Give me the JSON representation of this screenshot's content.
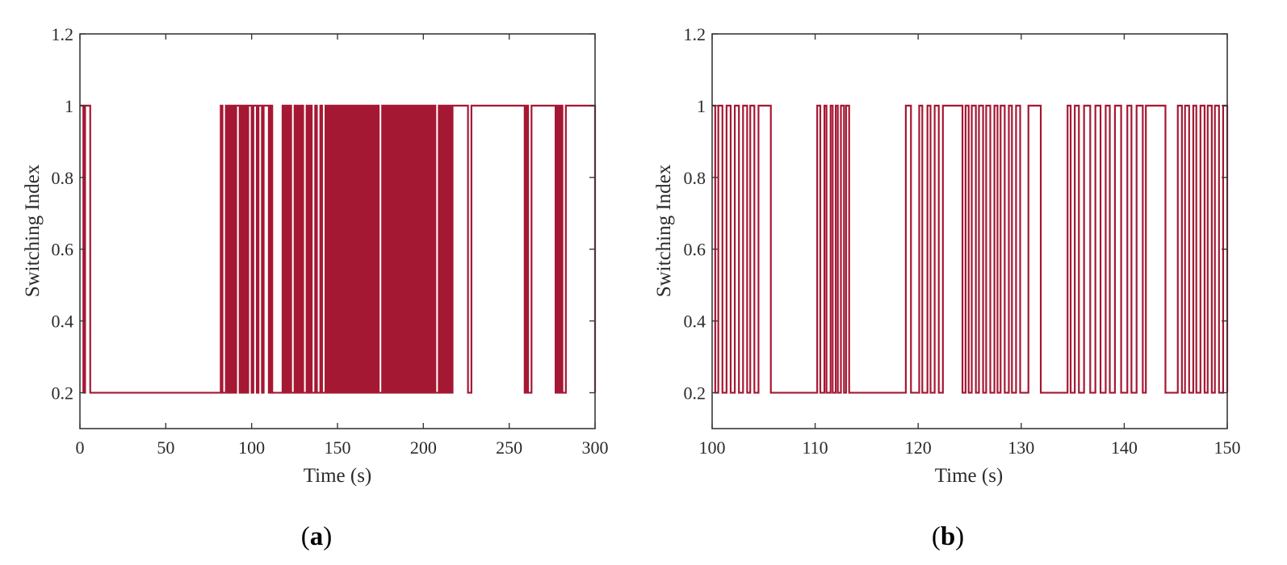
{
  "colors": {
    "series": "#A51833",
    "axes": "#3a3a3a",
    "background": "#ffffff"
  },
  "chart_data": [
    {
      "type": "line",
      "panel_label": "a",
      "xlabel": "Time (s)",
      "ylabel": "Switching Index",
      "xlim": [
        0,
        300
      ],
      "ylim": [
        0.1,
        1.2
      ],
      "xticks": [
        0,
        50,
        100,
        150,
        200,
        250,
        300
      ],
      "xtick_labels": [
        "0",
        "50",
        "100",
        "150",
        "200",
        "250",
        "300"
      ],
      "yticks": [
        0.2,
        0.4,
        0.6,
        0.8,
        1.0,
        1.2
      ],
      "ytick_labels": [
        "0.2",
        "0.4",
        "0.6",
        "0.8",
        "1",
        "1.2"
      ],
      "grid": false,
      "step": true,
      "series": [
        {
          "values_at_levels": [
            0.2,
            1.0
          ],
          "x": [
            0,
            2,
            3,
            5,
            6,
            82,
            83,
            85,
            86,
            87,
            88,
            89,
            90,
            91,
            93,
            94,
            95,
            96,
            97,
            98,
            100,
            101,
            103,
            104,
            106,
            107,
            110,
            111,
            112,
            113,
            118,
            119,
            120,
            121,
            122,
            123,
            125,
            126,
            127,
            128,
            129,
            130,
            132,
            133,
            134,
            135,
            137,
            138,
            140,
            141,
            143,
            144,
            145,
            146,
            147,
            148,
            149,
            150,
            151,
            152,
            153,
            154,
            155,
            156,
            157,
            158,
            159,
            160,
            161,
            162,
            163,
            164,
            165,
            166,
            167,
            168,
            169,
            170,
            171,
            172,
            173,
            174,
            176,
            177,
            178,
            179,
            180,
            181,
            182,
            183,
            184,
            185,
            186,
            187,
            188,
            189,
            190,
            191,
            192,
            193,
            194,
            195,
            196,
            197,
            198,
            199,
            200,
            201,
            202,
            203,
            204,
            205,
            206,
            207,
            209,
            210,
            211,
            212,
            213,
            214,
            215,
            216,
            217,
            226,
            228,
            259,
            260,
            261,
            263,
            277,
            278,
            279,
            280,
            281,
            283,
            300
          ],
          "y": [
            1,
            0.2,
            1,
            1,
            0.2,
            1,
            0.2,
            1,
            0.2,
            1,
            0.2,
            1,
            0.2,
            1,
            0.2,
            1,
            0.2,
            1,
            0.2,
            1,
            0.2,
            1,
            0.2,
            1,
            0.2,
            1,
            0.2,
            1,
            0.2,
            0.2,
            1,
            0.2,
            1,
            0.2,
            1,
            0.2,
            1,
            0.2,
            1,
            0.2,
            1,
            0.2,
            1,
            0.2,
            1,
            0.2,
            1,
            0.2,
            1,
            0.2,
            1,
            0.2,
            1,
            0.2,
            1,
            0.2,
            1,
            0.2,
            1,
            0.2,
            1,
            0.2,
            1,
            0.2,
            1,
            0.2,
            1,
            0.2,
            1,
            0.2,
            1,
            0.2,
            1,
            0.2,
            1,
            0.2,
            1,
            0.2,
            1,
            0.2,
            1,
            0.2,
            1,
            0.2,
            1,
            0.2,
            1,
            0.2,
            1,
            0.2,
            1,
            0.2,
            1,
            0.2,
            1,
            0.2,
            1,
            0.2,
            1,
            0.2,
            1,
            0.2,
            1,
            0.2,
            1,
            0.2,
            1,
            0.2,
            1,
            0.2,
            1,
            0.2,
            1,
            0.2,
            1,
            0.2,
            1,
            0.2,
            1,
            0.2,
            1,
            0.2,
            1,
            0.2,
            1,
            0.2,
            1,
            0.2,
            1,
            0.2,
            1,
            0.2,
            1,
            0.2,
            1,
            0.2
          ]
        }
      ]
    },
    {
      "type": "line",
      "panel_label": "b",
      "xlabel": "Time (s)",
      "ylabel": "Switching Index",
      "xlim": [
        100,
        150
      ],
      "ylim": [
        0.1,
        1.2
      ],
      "xticks": [
        100,
        110,
        120,
        130,
        140,
        150
      ],
      "xtick_labels": [
        "100",
        "110",
        "120",
        "130",
        "140",
        "150"
      ],
      "yticks": [
        0.2,
        0.4,
        0.6,
        0.8,
        1.0,
        1.2
      ],
      "ytick_labels": [
        "0.2",
        "0.4",
        "0.6",
        "0.8",
        "1",
        "1.2"
      ],
      "grid": false,
      "step": true,
      "series": [
        {
          "values_at_levels": [
            0.2,
            1.0
          ],
          "x": [
            100,
            100.3,
            100.6,
            101.0,
            101.4,
            101.8,
            102.2,
            102.6,
            103.0,
            103.4,
            103.7,
            104.1,
            104.5,
            105.1,
            105.7,
            110.2,
            110.5,
            110.9,
            111.1,
            111.5,
            111.7,
            112.0,
            112.2,
            112.5,
            112.8,
            113.0,
            113.3,
            118.8,
            119.3,
            120.1,
            120.4,
            120.9,
            121.2,
            121.6,
            122.0,
            122.4,
            124.3,
            124.6,
            124.9,
            125.2,
            125.6,
            125.9,
            126.3,
            126.6,
            127.0,
            127.4,
            127.7,
            128.0,
            128.4,
            128.8,
            129.1,
            129.5,
            129.9,
            130.7,
            131.9,
            134.5,
            134.8,
            135.2,
            135.6,
            136.1,
            136.7,
            137.2,
            137.7,
            138.2,
            138.6,
            139.1,
            139.7,
            140.3,
            140.7,
            141.2,
            141.8,
            142.1,
            144.0,
            145.2,
            145.6,
            145.9,
            146.3,
            146.7,
            147.0,
            147.4,
            147.8,
            148.1,
            148.5,
            148.8,
            149.2,
            149.6,
            150
          ],
          "y": [
            1,
            0.2,
            1,
            0.2,
            1,
            0.2,
            1,
            0.2,
            1,
            0.2,
            1,
            0.2,
            1,
            1,
            0.2,
            1,
            0.2,
            1,
            0.2,
            1,
            0.2,
            1,
            0.2,
            1,
            0.2,
            1,
            0.2,
            1,
            0.2,
            1,
            0.2,
            1,
            0.2,
            1,
            0.2,
            1,
            0.2,
            1,
            0.2,
            1,
            0.2,
            1,
            0.2,
            1,
            0.2,
            1,
            0.2,
            1,
            0.2,
            1,
            0.2,
            1,
            0.2,
            1,
            0.2,
            1,
            0.2,
            1,
            0.2,
            1,
            0.2,
            1,
            0.2,
            1,
            0.2,
            1,
            0.2,
            1,
            0.2,
            1,
            0.2,
            1,
            0.2,
            1,
            0.2,
            1,
            0.2,
            1,
            0.2,
            1,
            0.2,
            1,
            0.2,
            1,
            0.2,
            1,
            0.2
          ]
        }
      ]
    }
  ]
}
